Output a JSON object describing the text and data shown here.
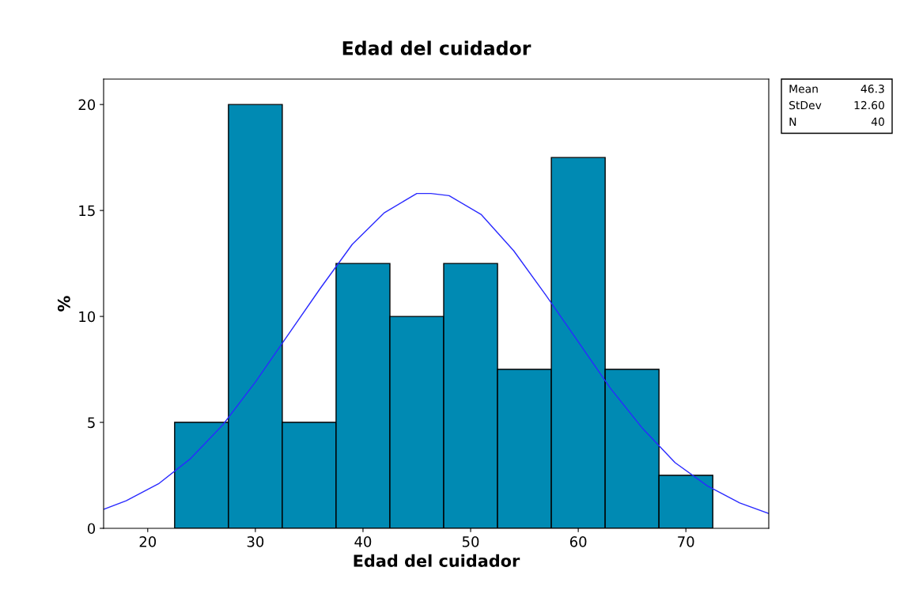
{
  "chart_data": {
    "type": "histogram",
    "title": "Edad del cuidador",
    "xlabel": "Edad del cuidador",
    "ylabel": "%",
    "series": [
      {
        "color": "#008ab3",
        "bins": [
          22.5,
          27.5,
          32.5,
          37.5,
          42.5,
          47.5,
          52.5,
          57.5,
          62.5,
          67.5,
          72.5
        ],
        "values": [
          5,
          20,
          5,
          12.5,
          10,
          12.5,
          7.5,
          17.5,
          7.5,
          2.5
        ]
      },
      {
        "type": "line",
        "color": "#2a2aff",
        "x": [
          15.9,
          18,
          21,
          24,
          27,
          30,
          33,
          36,
          39,
          42,
          45,
          46.3,
          48,
          51,
          54,
          57,
          60,
          63,
          66,
          69,
          72,
          75,
          77.7
        ],
        "values": [
          0.9,
          1.3,
          2.1,
          3.3,
          4.9,
          6.9,
          9.1,
          11.3,
          13.4,
          14.9,
          15.8,
          15.8,
          15.7,
          14.8,
          13.1,
          11.0,
          8.8,
          6.6,
          4.7,
          3.1,
          2.0,
          1.2,
          0.7
        ]
      }
    ],
    "xlim": [
      15.9,
      77.7
    ],
    "ylim": [
      0,
      21.2
    ],
    "xticks": [
      20,
      30,
      40,
      50,
      60,
      70
    ],
    "yticks": [
      0,
      5,
      10,
      15,
      20
    ],
    "grid": false,
    "legend": false,
    "annotations": [
      "Mean 46.3",
      "StDev 12.60",
      "N 40"
    ]
  }
}
